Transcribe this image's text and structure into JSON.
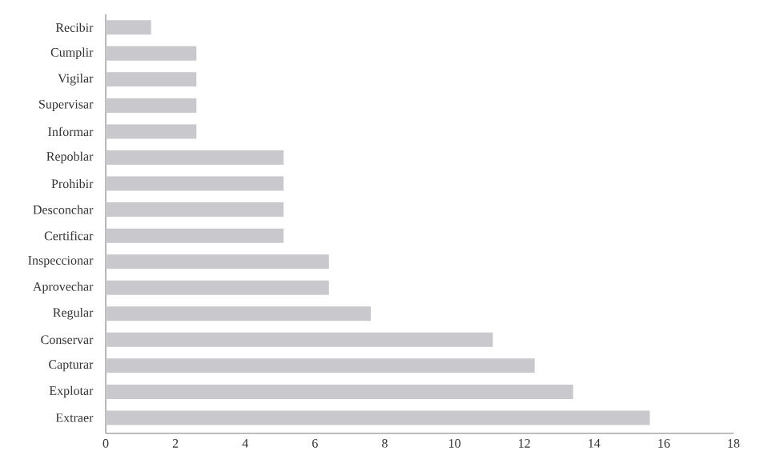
{
  "chart_data": {
    "type": "bar",
    "orientation": "horizontal",
    "categories": [
      "Recibir",
      "Cumplir",
      "Vigilar",
      "Supervisar",
      "Informar",
      "Repoblar",
      "Prohibir",
      "Desconchar",
      "Certificar",
      "Inspeccionar",
      "Aprovechar",
      "Regular",
      "Conservar",
      "Capturar",
      "Explotar",
      "Extraer"
    ],
    "values": [
      1.3,
      2.6,
      2.6,
      2.6,
      2.6,
      5.1,
      5.1,
      5.1,
      5.1,
      6.4,
      6.4,
      7.6,
      11.1,
      12.3,
      13.4,
      15.6
    ],
    "color": "#c9c9cd",
    "xlim": [
      0,
      18
    ],
    "xticks": [
      0,
      2,
      4,
      6,
      8,
      10,
      12,
      14,
      16,
      18
    ],
    "grid": false
  }
}
